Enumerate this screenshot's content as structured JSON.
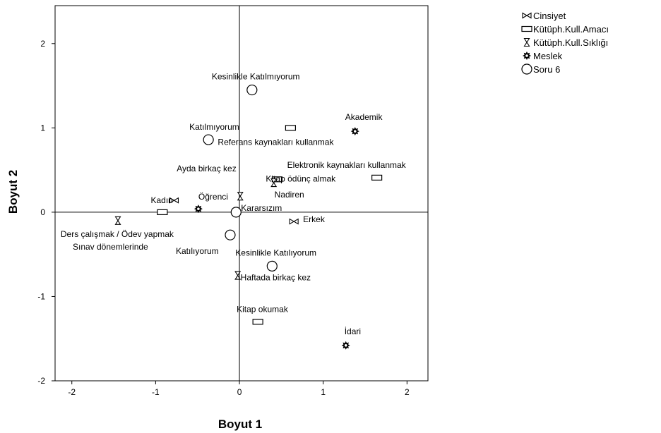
{
  "chart_data": {
    "type": "scatter",
    "xlabel": "Boyut 1",
    "ylabel": "Boyut 2",
    "xlim": [
      -2.2,
      2.25
    ],
    "ylim": [
      -2.0,
      2.45
    ],
    "x_ticks": [
      -2,
      -1,
      0,
      1,
      2
    ],
    "y_ticks": [
      -2,
      -1,
      0,
      1,
      2
    ],
    "reference_lines": {
      "x": 0,
      "y": 0
    },
    "grid": false,
    "legend_position": "top-right",
    "series": [
      {
        "name": "Cinsiyet",
        "marker": "bowtie",
        "points": [
          {
            "label": "Kadın",
            "x": -0.78,
            "y": 0.14
          },
          {
            "label": "Erkek",
            "x": 0.65,
            "y": -0.11
          }
        ]
      },
      {
        "name": "Kütüph.Kull.Amacı",
        "marker": "rectangle",
        "points": [
          {
            "label": "Referans kaynakları kullanmak",
            "x": 0.61,
            "y": 1.0
          },
          {
            "label": "Elektronik kaynakları kullanmak",
            "x": 1.64,
            "y": 0.41
          },
          {
            "label": "Kitap ödünç almak",
            "x": 0.45,
            "y": 0.39
          },
          {
            "label": "Ders çalışmak / Ödev yapmak",
            "x": -0.92,
            "y": 0.0
          },
          {
            "label": "Kitap okumak",
            "x": 0.22,
            "y": -1.3
          }
        ]
      },
      {
        "name": "Kütüph.Kull.Sıklığı",
        "marker": "hourglass",
        "points": [
          {
            "label": "Ayda birkaç kez",
            "x": 0.01,
            "y": 0.19
          },
          {
            "label": "Nadiren",
            "x": 0.41,
            "y": 0.35
          },
          {
            "label": "Sınav dönemlerinde",
            "x": -1.45,
            "y": -0.1
          },
          {
            "label": "Haftada birkaç kez",
            "x": -0.02,
            "y": -0.75
          }
        ]
      },
      {
        "name": "Meslek",
        "marker": "gear",
        "points": [
          {
            "label": "Akademik",
            "x": 1.38,
            "y": 0.96
          },
          {
            "label": "Öğrenci",
            "x": -0.49,
            "y": 0.04
          },
          {
            "label": "İdari",
            "x": 1.27,
            "y": -1.58
          }
        ]
      },
      {
        "name": "Soru 6",
        "marker": "circle",
        "points": [
          {
            "label": "Kesinlikle Katılmıyorum",
            "x": 0.15,
            "y": 1.45
          },
          {
            "label": "Katılmıyorum",
            "x": -0.37,
            "y": 0.86
          },
          {
            "label": "Kararsızım",
            "x": -0.04,
            "y": 0.0
          },
          {
            "label": "Katılıyorum",
            "x": -0.11,
            "y": -0.27
          },
          {
            "label": "Kesinlikle Katılıyorum",
            "x": 0.39,
            "y": -0.64
          }
        ]
      }
    ]
  }
}
